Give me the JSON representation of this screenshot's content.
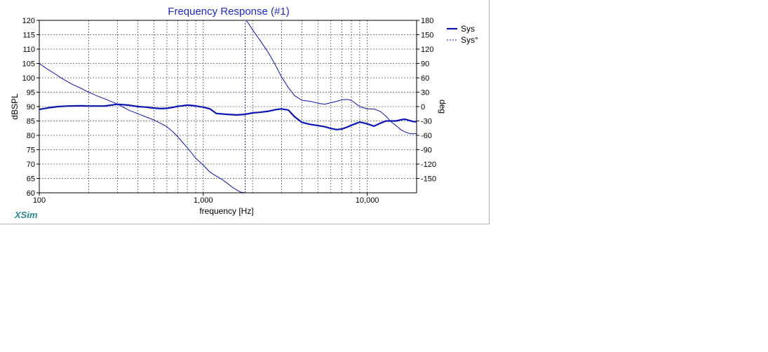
{
  "chart_data": {
    "type": "line",
    "title": "Frequency Response (#1)",
    "xlabel": "frequency [Hz]",
    "ylabel_left": "dBSPL",
    "ylabel_right": "deg",
    "x_scale": "log",
    "xlim": [
      100,
      20000
    ],
    "ylim_left": [
      60,
      120
    ],
    "ylim_right": [
      -180,
      180
    ],
    "x_ticks": [
      {
        "value": 100,
        "label": "100"
      },
      {
        "value": 1000,
        "label": "1,000"
      },
      {
        "value": 10000,
        "label": "10,000"
      }
    ],
    "y_ticks_left": [
      "60",
      "65",
      "70",
      "75",
      "80",
      "85",
      "90",
      "95",
      "100",
      "105",
      "110",
      "115",
      "120"
    ],
    "y_ticks_right": [
      "-150",
      "-120",
      "-90",
      "-60",
      "-30",
      "0",
      "30",
      "60",
      "90",
      "120",
      "150",
      "180"
    ],
    "grid": true,
    "legend_position": "top-right",
    "series": [
      {
        "name": "Sys",
        "axis": "left",
        "color": "#0a14b4",
        "style": "solid-thick",
        "x": [
          100,
          115,
          130,
          150,
          180,
          200,
          250,
          300,
          350,
          400,
          450,
          500,
          550,
          600,
          650,
          700,
          750,
          800,
          850,
          900,
          1000,
          1100,
          1200,
          1400,
          1600,
          1800,
          2000,
          2200,
          2500,
          2800,
          3000,
          3300,
          3600,
          4000,
          4500,
          5000,
          5500,
          6000,
          6500,
          7000,
          7500,
          8000,
          9000,
          10000,
          11000,
          12000,
          13000,
          14000,
          15000,
          16000,
          17000,
          18000,
          19000,
          20000
        ],
        "y": [
          89.0,
          89.6,
          90.0,
          90.2,
          90.3,
          90.2,
          90.2,
          90.8,
          90.5,
          90.0,
          89.8,
          89.5,
          89.3,
          89.4,
          89.7,
          90.1,
          90.3,
          90.5,
          90.4,
          90.2,
          89.8,
          89.2,
          87.6,
          87.3,
          87.1,
          87.3,
          87.8,
          88.0,
          88.4,
          89.0,
          89.2,
          88.8,
          86.5,
          84.5,
          83.8,
          83.4,
          83.0,
          82.4,
          82.0,
          82.2,
          82.8,
          83.5,
          84.6,
          84.0,
          83.2,
          84.2,
          85.0,
          85.0,
          85.0,
          85.4,
          85.6,
          85.2,
          84.8,
          84.7
        ]
      },
      {
        "name": "Sys°",
        "axis": "right",
        "color": "#0a14b4",
        "style": "solid-thin",
        "x": [
          100,
          110,
          125,
          140,
          160,
          180,
          200,
          230,
          260,
          300,
          350,
          400,
          450,
          500,
          550,
          600,
          650,
          700,
          750,
          800,
          850,
          900,
          1000,
          1100,
          1200,
          1300,
          1400,
          1500,
          1600,
          1700,
          1800
        ],
        "y": [
          90,
          80,
          68,
          57,
          46,
          38,
          30,
          21,
          14,
          5,
          -7,
          -15,
          -22,
          -28,
          -35,
          -42,
          -52,
          -63,
          -75,
          -86,
          -97,
          -108,
          -122,
          -137,
          -145,
          -152,
          -160,
          -168,
          -174,
          -179,
          -180
        ]
      },
      {
        "name": "Sys°",
        "axis": "right",
        "color": "#0a14b4",
        "style": "solid-thin",
        "x": [
          1850,
          2000,
          2200,
          2500,
          2800,
          3000,
          3300,
          3600,
          4000,
          4500,
          5000,
          5500,
          6000,
          6500,
          7000,
          7500,
          8000,
          9000,
          10000,
          11000,
          12000,
          13000,
          14000,
          15000,
          16000,
          17000,
          18000,
          19000,
          20000
        ],
        "y": [
          178,
          160,
          140,
          112,
          82,
          62,
          40,
          23,
          13,
          11,
          7,
          5,
          8,
          11,
          14,
          15,
          13,
          0,
          -5,
          -5,
          -10,
          -20,
          -32,
          -40,
          -48,
          -53,
          -56,
          -57,
          -56
        ]
      },
      {
        "name": "Sys°",
        "axis": "right",
        "color": "#0a14b4",
        "style": "dashed",
        "x": [
          1800,
          1800,
          1840
        ],
        "y": [
          -180,
          176,
          178
        ]
      }
    ],
    "legend": [
      {
        "label": "Sys",
        "style": "solid-thick"
      },
      {
        "label": "Sys°",
        "style": "dashed"
      }
    ]
  },
  "brand": "XSim",
  "colors": {
    "line": "#0a14b4",
    "title": "#1e28c8",
    "brand": "#2a8a8a",
    "grid": "#555555"
  }
}
